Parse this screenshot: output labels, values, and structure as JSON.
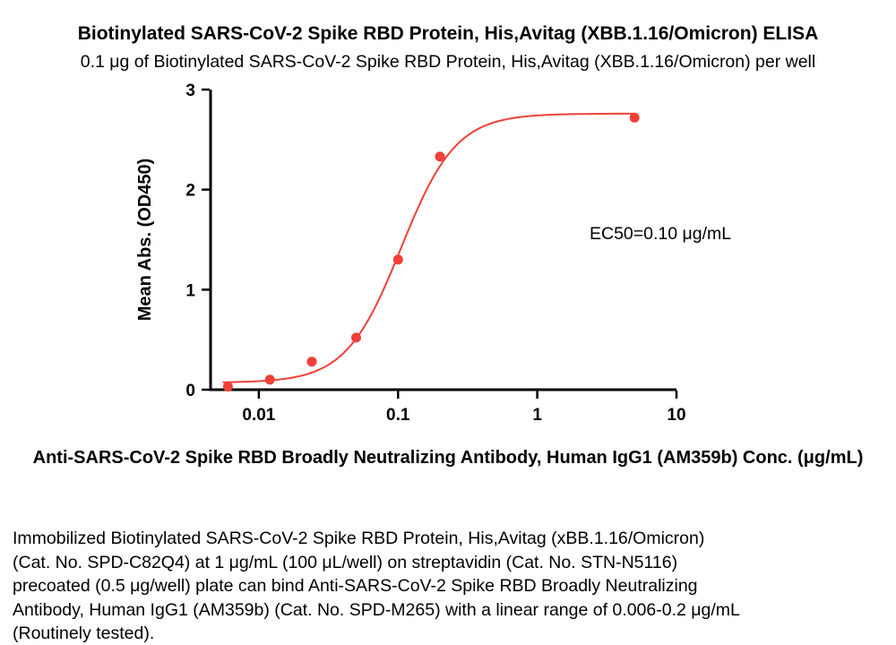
{
  "title": "Biotinylated SARS-CoV-2 Spike RBD Protein, His,Avitag (XBB.1.16/Omicron) ELISA",
  "subtitle": "0.1 μg of Biotinylated SARS-CoV-2 Spike RBD Protein, His,Avitag (XBB.1.16/Omicron) per well",
  "chart_data": {
    "type": "scatter",
    "x": [
      0.006,
      0.012,
      0.024,
      0.05,
      0.1,
      0.2,
      5
    ],
    "y": [
      0.03,
      0.1,
      0.28,
      0.52,
      1.3,
      2.33,
      2.72
    ],
    "curve_fit": {
      "model": "4PL",
      "bottom": 0.07,
      "top": 2.76,
      "ec50": 0.105,
      "hill": 2.2
    },
    "curve_range": [
      0.0055,
      5
    ],
    "title": "Biotinylated SARS-CoV-2 Spike RBD Protein, His,Avitag (XBB.1.16/Omicron) ELISA",
    "xlabel": "Anti-SARS-CoV-2 Spike RBD Broadly Neutralizing Antibody, Human IgG1 (AM359b) Conc. (μg/mL)",
    "ylabel": "Mean Abs. (OD450)",
    "xscale": "log",
    "xlim": [
      0.0045,
      10
    ],
    "ylim": [
      0,
      3
    ],
    "yticks": [
      0,
      1,
      2,
      3
    ],
    "ytick_labels": [
      "0",
      "1",
      "2",
      "3"
    ],
    "xticks": [
      0.01,
      0.1,
      1,
      10
    ],
    "xtick_labels": [
      "0.01",
      "0.1",
      "1",
      "10"
    ],
    "annotation": "EC50=0.10 μg/mL",
    "legend": "none",
    "grid": false,
    "color": "#ee4037"
  },
  "caption_lines": [
    "Immobilized Biotinylated SARS-CoV-2 Spike RBD Protein, His,Avitag (xBB.1.16/Omicron)",
    "(Cat. No. SPD-C82Q4) at 1 μg/mL (100 μL/well) on streptavidin (Cat. No. STN-N5116)",
    "precoated (0.5 μg/well) plate can bind Anti-SARS-CoV-2 Spike RBD Broadly Neutralizing",
    "Antibody, Human IgG1 (AM359b) (Cat. No. SPD-M265) with a linear range of 0.006-0.2 μg/mL",
    "(Routinely tested)."
  ]
}
